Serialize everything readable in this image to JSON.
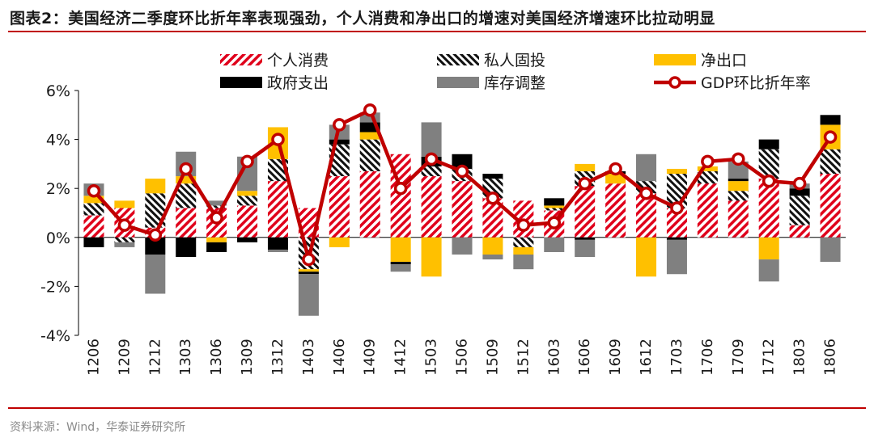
{
  "figure": {
    "title": "图表2：美国经济二季度环比折年率表现强劲，个人消费和净出口的增速对美国经济增速环比拉动明显",
    "source": "资料来源：Wind，华泰证券研究所"
  },
  "chart_data": {
    "type": "bar",
    "stacked": true,
    "title": "美国经济二季度环比折年率表现强劲，个人消费和净出口的增速对美国经济增速环比拉动明显",
    "xlabel": "",
    "ylabel": "",
    "ylim": [
      -4,
      6
    ],
    "yticks": [
      -4,
      -2,
      0,
      2,
      4,
      6
    ],
    "ytick_labels": [
      "-4%",
      "-2%",
      "0%",
      "2%",
      "4%",
      "6%"
    ],
    "categories": [
      "1206",
      "1209",
      "1212",
      "1303",
      "1306",
      "1309",
      "1312",
      "1403",
      "1406",
      "1409",
      "1412",
      "1503",
      "1506",
      "1509",
      "1512",
      "1603",
      "1606",
      "1609",
      "1612",
      "1703",
      "1706",
      "1709",
      "1712",
      "1803",
      "1806"
    ],
    "legend": {
      "position": "top",
      "columns": 3
    },
    "series": [
      {
        "name": "个人消费",
        "pattern": "diag-red",
        "color": "#e0001b",
        "values": [
          0.9,
          1.2,
          0.4,
          1.2,
          1.2,
          1.3,
          2.3,
          1.2,
          2.5,
          2.7,
          3.4,
          2.5,
          2.3,
          1.6,
          1.5,
          1.1,
          2.1,
          2.2,
          1.8,
          1.2,
          2.2,
          1.5,
          2.4,
          0.5,
          2.6
        ]
      },
      {
        "name": "私人固投",
        "pattern": "diag-black",
        "color": "#000000",
        "values": [
          0.5,
          -0.2,
          1.4,
          1.0,
          0.1,
          0.4,
          0.9,
          -1.3,
          1.3,
          1.3,
          0.0,
          0.4,
          0.5,
          0.8,
          -0.4,
          0.1,
          0.6,
          0.0,
          0.5,
          1.4,
          0.5,
          0.4,
          1.2,
          1.2,
          1.0
        ]
      },
      {
        "name": "净出口",
        "color": "#ffc000",
        "values": [
          0.3,
          0.3,
          0.6,
          0.3,
          -0.2,
          0.2,
          1.3,
          -0.1,
          -0.4,
          0.3,
          -1.0,
          -1.6,
          0.0,
          -0.7,
          -0.3,
          0.1,
          0.3,
          0.4,
          -1.6,
          0.2,
          0.2,
          0.4,
          -0.9,
          0.0,
          1.0
        ]
      },
      {
        "name": "政府支出",
        "color": "#000000",
        "values": [
          -0.4,
          0.0,
          -0.7,
          -0.8,
          -0.4,
          -0.2,
          -0.5,
          -0.1,
          0.2,
          0.4,
          -0.1,
          0.4,
          0.6,
          0.2,
          0.0,
          0.3,
          -0.1,
          0.1,
          0.0,
          -0.1,
          0.0,
          0.1,
          0.4,
          0.3,
          0.4
        ]
      },
      {
        "name": "库存调整",
        "color": "#808080",
        "values": [
          0.5,
          -0.2,
          -1.6,
          1.0,
          0.2,
          1.4,
          -0.1,
          -1.7,
          0.6,
          0.4,
          -0.3,
          1.4,
          -0.7,
          -0.2,
          -0.6,
          -0.6,
          -0.7,
          0.0,
          1.1,
          -1.4,
          0.0,
          0.7,
          -0.9,
          0.2,
          -1.0
        ]
      },
      {
        "name": "GDP环比折年率",
        "type": "line",
        "color": "#c00000",
        "values": [
          1.9,
          0.5,
          0.1,
          2.8,
          0.8,
          3.1,
          4.0,
          -0.9,
          4.6,
          5.2,
          2.0,
          3.2,
          2.7,
          1.6,
          0.5,
          0.6,
          2.2,
          2.8,
          1.8,
          1.2,
          3.1,
          3.2,
          2.3,
          2.2,
          4.1
        ]
      }
    ]
  }
}
